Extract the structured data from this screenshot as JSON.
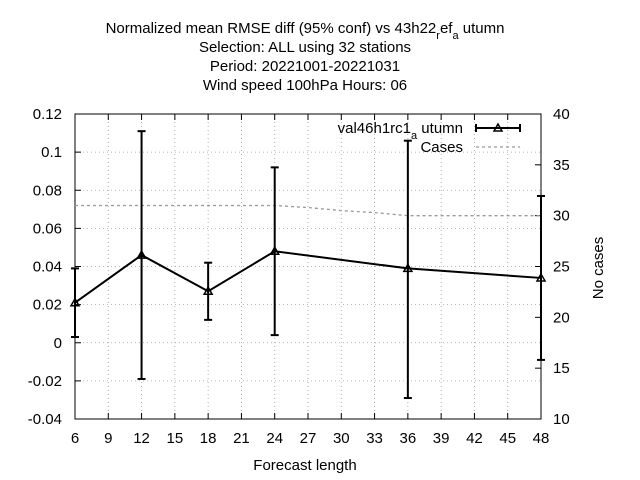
{
  "chart_data": {
    "type": "line",
    "title_lines": [
      "Normalized mean RMSE diff (95% conf) vs 43h22_ref_autumn",
      "Selection: ALL using    32 stations",
      "Period: 20221001-20221031",
      "Wind speed 100hPa   Hours:  06"
    ],
    "xlabel": "Forecast length",
    "ylabel": "",
    "y2label": "No cases",
    "xlim": [
      6,
      48
    ],
    "ylim": [
      -0.04,
      0.12
    ],
    "y2lim": [
      10,
      40
    ],
    "xticks": [
      6,
      9,
      12,
      15,
      18,
      21,
      24,
      27,
      30,
      33,
      36,
      39,
      42,
      45,
      48
    ],
    "yticks": [
      "-0.04",
      "-0.02",
      "0",
      "0.02",
      "0.04",
      "0.06",
      "0.08",
      "0.1",
      "0.12"
    ],
    "y2ticks": [
      10,
      15,
      20,
      25,
      30,
      35,
      40
    ],
    "grid": true,
    "legend_position": "top-right",
    "series": [
      {
        "name": "val46h1rc1_autumn",
        "color": "#000000",
        "x": [
          6,
          12,
          18,
          24,
          36,
          48
        ],
        "y": [
          0.021,
          0.046,
          0.027,
          0.048,
          0.039,
          0.034
        ],
        "err_low": [
          0.003,
          -0.019,
          0.012,
          0.004,
          -0.029,
          -0.009
        ],
        "err_high": [
          0.039,
          0.111,
          0.042,
          0.092,
          0.106,
          0.077
        ]
      },
      {
        "name": "Cases",
        "color": "#999999",
        "axis": "y2",
        "x": [
          6,
          12,
          18,
          24,
          27,
          30,
          33,
          36,
          39,
          42,
          45,
          48
        ],
        "y": [
          31,
          31,
          31,
          31,
          30.8,
          30.5,
          30.3,
          30,
          30,
          30,
          30,
          30
        ]
      }
    ]
  }
}
